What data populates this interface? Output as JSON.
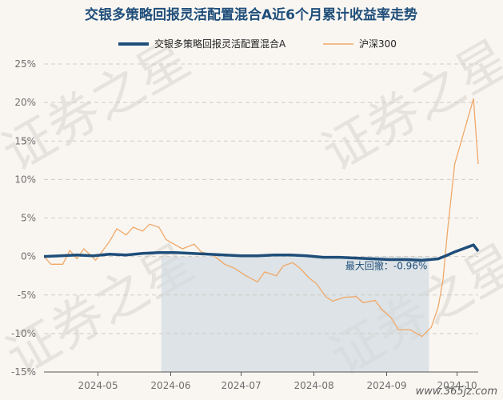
{
  "chart_data": {
    "type": "line",
    "title": "交银多策略回报灵活配置混合A近6个月累计收益率走势",
    "ylabel": "",
    "xlabel": "",
    "ylim": [
      -15,
      25
    ],
    "yticks": [
      25,
      20,
      15,
      10,
      5,
      0,
      -5,
      -10,
      -15
    ],
    "ytick_labels": [
      "25%",
      "20%",
      "15%",
      "10%",
      "5%",
      "0%",
      "-5%",
      "-10%",
      "-15%"
    ],
    "xlim": [
      "2024-04-08",
      "2024-10-10"
    ],
    "xticks": [
      "2024-05-01",
      "2024-06-01",
      "2024-07-01",
      "2024-08-01",
      "2024-09-01",
      "2024-10-01"
    ],
    "xtick_labels": [
      "2024-05",
      "2024-06",
      "2024-07",
      "2024-08",
      "2024-09",
      "2024-10"
    ],
    "grid": "horizontal dashed",
    "legend_position": "top",
    "series": [
      {
        "name": "交银多策略回报灵活配置混合A",
        "color": "#1f4e79",
        "points": [
          [
            "2024-04-08",
            0.0
          ],
          [
            "2024-04-15",
            0.1
          ],
          [
            "2024-04-22",
            0.2
          ],
          [
            "2024-04-29",
            0.1
          ],
          [
            "2024-05-06",
            0.3
          ],
          [
            "2024-05-13",
            0.2
          ],
          [
            "2024-05-20",
            0.4
          ],
          [
            "2024-05-27",
            0.5
          ],
          [
            "2024-06-03",
            0.5
          ],
          [
            "2024-06-10",
            0.4
          ],
          [
            "2024-06-17",
            0.3
          ],
          [
            "2024-06-24",
            0.2
          ],
          [
            "2024-07-01",
            0.1
          ],
          [
            "2024-07-08",
            0.1
          ],
          [
            "2024-07-15",
            0.2
          ],
          [
            "2024-07-22",
            0.2
          ],
          [
            "2024-07-29",
            0.1
          ],
          [
            "2024-08-05",
            -0.1
          ],
          [
            "2024-08-12",
            -0.1
          ],
          [
            "2024-08-19",
            -0.2
          ],
          [
            "2024-08-26",
            -0.3
          ],
          [
            "2024-09-02",
            -0.4
          ],
          [
            "2024-09-09",
            -0.4
          ],
          [
            "2024-09-16",
            -0.5
          ],
          [
            "2024-09-23",
            -0.3
          ],
          [
            "2024-09-27",
            0.2
          ],
          [
            "2024-09-30",
            0.6
          ],
          [
            "2024-10-08",
            1.5
          ],
          [
            "2024-10-10",
            0.7
          ]
        ]
      },
      {
        "name": "沪深300",
        "color": "#f0a868",
        "points": [
          [
            "2024-04-08",
            0.0
          ],
          [
            "2024-04-11",
            -1.0
          ],
          [
            "2024-04-16",
            -1.0
          ],
          [
            "2024-04-19",
            0.8
          ],
          [
            "2024-04-22",
            -0.3
          ],
          [
            "2024-04-25",
            1.0
          ],
          [
            "2024-04-30",
            -0.5
          ],
          [
            "2024-05-06",
            2.0
          ],
          [
            "2024-05-09",
            3.6
          ],
          [
            "2024-05-13",
            2.8
          ],
          [
            "2024-05-16",
            3.8
          ],
          [
            "2024-05-20",
            3.3
          ],
          [
            "2024-05-23",
            4.2
          ],
          [
            "2024-05-27",
            3.8
          ],
          [
            "2024-05-30",
            2.2
          ],
          [
            "2024-06-03",
            1.5
          ],
          [
            "2024-06-06",
            1.0
          ],
          [
            "2024-06-11",
            1.6
          ],
          [
            "2024-06-14",
            0.6
          ],
          [
            "2024-06-19",
            0.2
          ],
          [
            "2024-06-24",
            -1.0
          ],
          [
            "2024-06-28",
            -1.5
          ],
          [
            "2024-07-03",
            -2.5
          ],
          [
            "2024-07-08",
            -3.3
          ],
          [
            "2024-07-11",
            -2.0
          ],
          [
            "2024-07-16",
            -2.5
          ],
          [
            "2024-07-19",
            -1.2
          ],
          [
            "2024-07-23",
            -0.8
          ],
          [
            "2024-07-26",
            -1.5
          ],
          [
            "2024-07-30",
            -2.8
          ],
          [
            "2024-08-02",
            -3.5
          ],
          [
            "2024-08-06",
            -5.2
          ],
          [
            "2024-08-09",
            -5.8
          ],
          [
            "2024-08-14",
            -5.3
          ],
          [
            "2024-08-19",
            -5.2
          ],
          [
            "2024-08-22",
            -6.0
          ],
          [
            "2024-08-27",
            -5.7
          ],
          [
            "2024-08-30",
            -6.9
          ],
          [
            "2024-09-03",
            -8.0
          ],
          [
            "2024-09-06",
            -9.5
          ],
          [
            "2024-09-11",
            -9.5
          ],
          [
            "2024-09-16",
            -10.4
          ],
          [
            "2024-09-18",
            -9.8
          ],
          [
            "2024-09-20",
            -9.2
          ],
          [
            "2024-09-23",
            -6.5
          ],
          [
            "2024-09-25",
            -3.0
          ],
          [
            "2024-09-27",
            3.5
          ],
          [
            "2024-09-30",
            12.0
          ],
          [
            "2024-10-08",
            20.5
          ],
          [
            "2024-10-10",
            12.0
          ]
        ]
      }
    ],
    "drawdown_period": {
      "start": "2024-05-28",
      "end": "2024-09-19"
    },
    "annotation": "最大回撤：-0.96%"
  },
  "watermark": "证券之星",
  "site_label": "www.365jz.com"
}
